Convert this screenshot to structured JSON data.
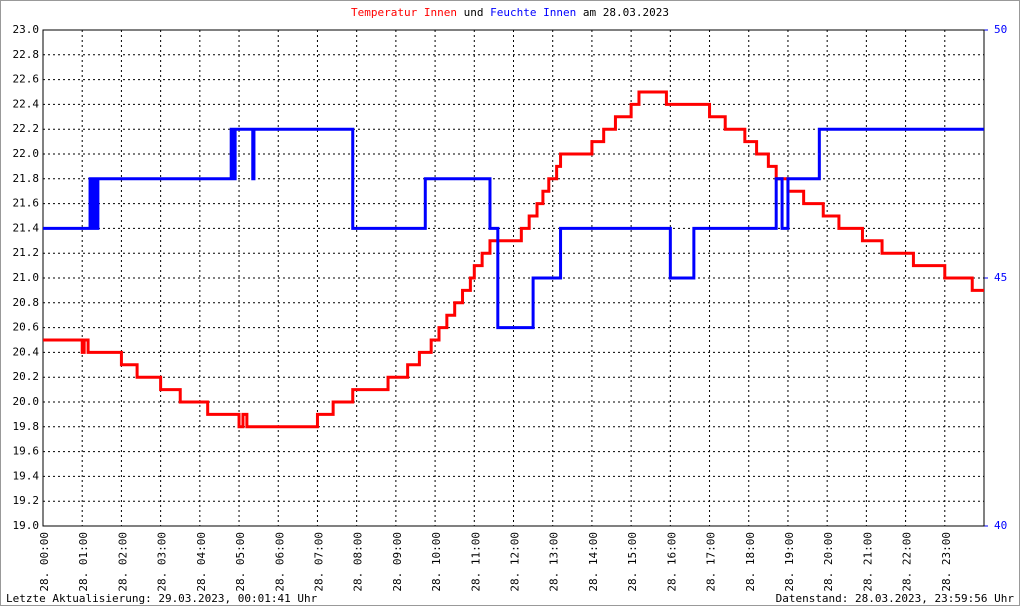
{
  "chart_data": {
    "type": "line",
    "title_join": "und",
    "title_date": "am 28.03.2023",
    "footer_left": "Letzte Aktualisierung: 29.03.2023, 00:01:41 Uhr",
    "footer_right": "Datenstand: 28.03.2023, 23:59:56 Uhr",
    "xlim": [
      0,
      24
    ],
    "xticks": [
      {
        "value": 0,
        "label": "28. 00:00"
      },
      {
        "value": 1,
        "label": "28. 01:00"
      },
      {
        "value": 2,
        "label": "28. 02:00"
      },
      {
        "value": 3,
        "label": "28. 03:00"
      },
      {
        "value": 4,
        "label": "28. 04:00"
      },
      {
        "value": 5,
        "label": "28. 05:00"
      },
      {
        "value": 6,
        "label": "28. 06:00"
      },
      {
        "value": 7,
        "label": "28. 07:00"
      },
      {
        "value": 8,
        "label": "28. 08:00"
      },
      {
        "value": 9,
        "label": "28. 09:00"
      },
      {
        "value": 10,
        "label": "28. 10:00"
      },
      {
        "value": 11,
        "label": "28. 11:00"
      },
      {
        "value": 12,
        "label": "28. 12:00"
      },
      {
        "value": 13,
        "label": "28. 13:00"
      },
      {
        "value": 14,
        "label": "28. 14:00"
      },
      {
        "value": 15,
        "label": "28. 15:00"
      },
      {
        "value": 16,
        "label": "28. 16:00"
      },
      {
        "value": 17,
        "label": "28. 17:00"
      },
      {
        "value": 18,
        "label": "28. 18:00"
      },
      {
        "value": 19,
        "label": "28. 19:00"
      },
      {
        "value": 20,
        "label": "28. 20:00"
      },
      {
        "value": 21,
        "label": "28. 21:00"
      },
      {
        "value": 22,
        "label": "28. 22:00"
      },
      {
        "value": 23,
        "label": "28. 23:00"
      }
    ],
    "ylim": [
      19,
      23
    ],
    "yticks": [
      {
        "value": 19,
        "label": "19.0"
      },
      19.2,
      19.4,
      19.6,
      19.8,
      {
        "value": 20,
        "label": "20.0"
      },
      20.2,
      20.4,
      20.6,
      20.8,
      {
        "value": 21,
        "label": "21.0"
      },
      21.2,
      21.4,
      21.6,
      21.8,
      {
        "value": 22,
        "label": "22.0"
      },
      22.2,
      22.4,
      22.6,
      22.8,
      {
        "value": 23,
        "label": "23.0"
      }
    ],
    "y2lim": [
      40,
      50
    ],
    "y2ticks": [
      40,
      45,
      50
    ],
    "grid": true,
    "series": [
      {
        "name": "Temperatur Innen",
        "color": "#ff0000",
        "x": [
          0,
          1.0,
          1.0,
          1.05,
          1.05,
          1.15,
          1.15,
          2.0,
          2.0,
          2.4,
          2.4,
          3.0,
          3.0,
          3.5,
          3.5,
          4.2,
          4.2,
          5.0,
          5.0,
          5.1,
          5.1,
          5.2,
          5.2,
          7.0,
          7.0,
          7.4,
          7.4,
          7.9,
          7.9,
          8.8,
          8.8,
          9.3,
          9.3,
          9.6,
          9.6,
          9.9,
          9.9,
          10.1,
          10.1,
          10.3,
          10.3,
          10.5,
          10.5,
          10.7,
          10.7,
          10.9,
          10.9,
          11.0,
          11.0,
          11.2,
          11.2,
          11.4,
          11.4,
          12.2,
          12.2,
          12.4,
          12.4,
          12.6,
          12.6,
          12.75,
          12.75,
          12.9,
          12.9,
          13.1,
          13.1,
          13.2,
          13.2,
          14.0,
          14.0,
          14.3,
          14.3,
          14.6,
          14.6,
          15.0,
          15.0,
          15.2,
          15.2,
          15.9,
          15.9,
          17.0,
          17.0,
          17.4,
          17.4,
          17.9,
          17.9,
          18.2,
          18.2,
          18.5,
          18.5,
          18.7,
          18.7,
          19.0,
          19.0,
          19.4,
          19.4,
          19.9,
          19.9,
          20.3,
          20.3,
          20.9,
          20.9,
          21.4,
          21.4,
          22.2,
          22.2,
          23.0,
          23.0,
          23.7,
          23.7,
          24.0
        ],
        "values": [
          20.5,
          20.5,
          20.4,
          20.4,
          20.5,
          20.5,
          20.4,
          20.4,
          20.3,
          20.3,
          20.2,
          20.2,
          20.1,
          20.1,
          20.0,
          20.0,
          19.9,
          19.9,
          19.8,
          19.8,
          19.9,
          19.9,
          19.8,
          19.8,
          19.9,
          19.9,
          20.0,
          20.0,
          20.1,
          20.1,
          20.2,
          20.2,
          20.3,
          20.3,
          20.4,
          20.4,
          20.5,
          20.5,
          20.6,
          20.6,
          20.7,
          20.7,
          20.8,
          20.8,
          20.9,
          20.9,
          21.0,
          21.0,
          21.1,
          21.1,
          21.2,
          21.2,
          21.3,
          21.3,
          21.4,
          21.4,
          21.5,
          21.5,
          21.6,
          21.6,
          21.7,
          21.7,
          21.8,
          21.8,
          21.9,
          21.9,
          22.0,
          22.0,
          22.1,
          22.1,
          22.2,
          22.2,
          22.3,
          22.3,
          22.4,
          22.4,
          22.5,
          22.5,
          22.4,
          22.4,
          22.3,
          22.3,
          22.2,
          22.2,
          22.1,
          22.1,
          22.0,
          22.0,
          21.9,
          21.9,
          21.8,
          21.8,
          21.7,
          21.7,
          21.6,
          21.6,
          21.5,
          21.5,
          21.4,
          21.4,
          21.3,
          21.3,
          21.2,
          21.2,
          21.1,
          21.1,
          21.0,
          21.0,
          20.9,
          20.9
        ]
      },
      {
        "name": "Feuchte Innen",
        "color": "#0000ff",
        "axis": "y2",
        "x": [
          0,
          1.2,
          1.2,
          1.25,
          1.25,
          1.3,
          1.3,
          1.35,
          1.35,
          1.4,
          1.4,
          4.8,
          4.8,
          4.85,
          4.85,
          4.9,
          4.9,
          5.35,
          5.35,
          5.38,
          5.38,
          7.9,
          7.9,
          9.75,
          9.75,
          11.4,
          11.4,
          11.6,
          11.6,
          12.5,
          12.5,
          13.2,
          13.2,
          16.0,
          16.0,
          16.6,
          16.6,
          18.7,
          18.7,
          18.85,
          18.85,
          19.0,
          19.0,
          19.8,
          19.8,
          24
        ],
        "values": [
          46,
          46,
          47,
          47,
          46,
          46,
          47,
          47,
          46,
          46,
          47,
          47,
          48,
          48,
          47,
          47,
          48,
          48,
          47,
          47,
          48,
          48,
          46,
          46,
          47,
          47,
          46,
          46,
          44,
          44,
          45,
          45,
          46,
          46,
          45,
          45,
          46,
          46,
          47,
          47,
          46,
          46,
          47,
          47,
          48,
          48
        ]
      }
    ]
  }
}
